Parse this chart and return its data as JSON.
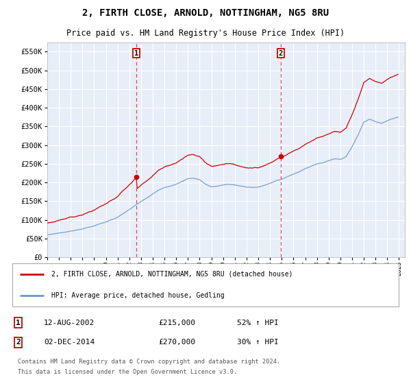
{
  "title": "2, FIRTH CLOSE, ARNOLD, NOTTINGHAM, NG5 8RU",
  "subtitle": "Price paid vs. HM Land Registry's House Price Index (HPI)",
  "legend_property": "2, FIRTH CLOSE, ARNOLD, NOTTINGHAM, NG5 8RU (detached house)",
  "legend_hpi": "HPI: Average price, detached house, Gedling",
  "footer1": "Contains HM Land Registry data © Crown copyright and database right 2024.",
  "footer2": "This data is licensed under the Open Government Licence v3.0.",
  "transaction1_label": "1",
  "transaction1_date": "12-AUG-2002",
  "transaction1_price": "£215,000",
  "transaction1_hpi": "52% ↑ HPI",
  "transaction1_year": 2002.62,
  "transaction1_value": 215000,
  "transaction2_label": "2",
  "transaction2_date": "02-DEC-2014",
  "transaction2_price": "£270,000",
  "transaction2_hpi": "30% ↑ HPI",
  "transaction2_year": 2014.92,
  "transaction2_value": 270000,
  "ylim": [
    0,
    575000
  ],
  "xlim_start": 1995.0,
  "xlim_end": 2025.5,
  "red_color": "#cc0000",
  "blue_color": "#6699cc",
  "vline_color": "#dd3333",
  "background_color": "#e8eef8",
  "grid_color": "#ffffff",
  "marker_box_color": "#cc0000",
  "title_fontsize": 10,
  "subtitle_fontsize": 8.5
}
